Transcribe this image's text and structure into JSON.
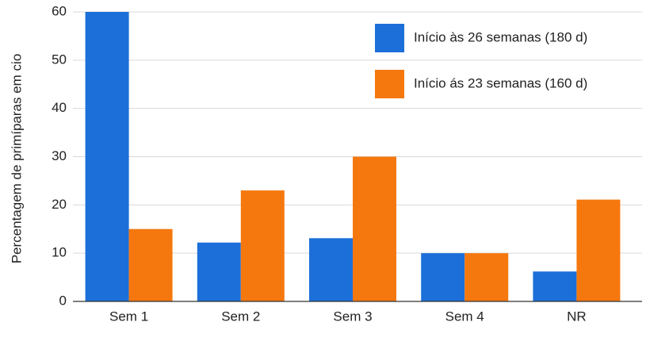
{
  "chart_data": {
    "type": "bar",
    "y_label": "Percentagem de primíparas em cio",
    "categories": [
      "Sem 1",
      "Sem 2",
      "Sem 3",
      "Sem 4",
      "NR"
    ],
    "series": [
      {
        "name": "Início às 26 semanas (180 d)",
        "color": "#1c6fd9",
        "values": [
          60,
          12.2,
          13.1,
          10,
          6.2
        ]
      },
      {
        "name": "Início ás 23 semanas (160 d)",
        "color": "#f5780f",
        "values": [
          15,
          23,
          30,
          10,
          21.1
        ]
      }
    ],
    "ylim": [
      0,
      60
    ],
    "yticks": [
      0,
      10,
      20,
      30,
      40,
      50,
      60
    ],
    "grid": true,
    "legend": "top-right"
  }
}
